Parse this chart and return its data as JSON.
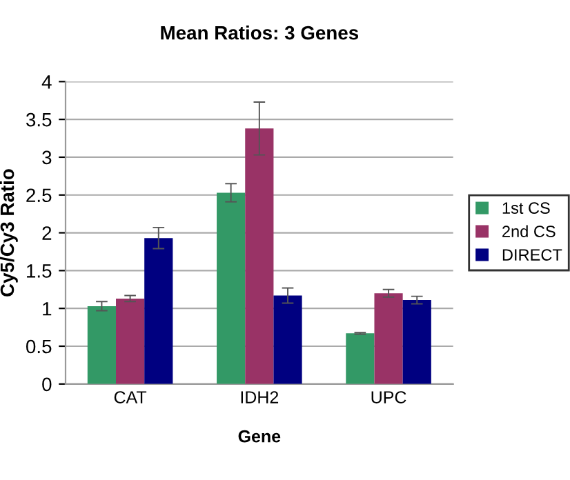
{
  "chart_data": {
    "type": "bar",
    "title": "Mean Ratios: 3 Genes",
    "xlabel": "Gene",
    "ylabel": "Cy5/Cy3 Ratio",
    "categories": [
      "CAT",
      "IDH2",
      "UPC"
    ],
    "series": [
      {
        "name": "1st CS",
        "color": "#339966",
        "values": [
          1.03,
          2.53,
          0.67
        ],
        "errors": [
          0.06,
          0.12,
          0.01
        ]
      },
      {
        "name": "2nd CS",
        "color": "#993366",
        "values": [
          1.13,
          3.38,
          1.2
        ],
        "errors": [
          0.04,
          0.35,
          0.05
        ]
      },
      {
        "name": "DIRECT",
        "color": "#000080",
        "values": [
          1.93,
          1.17,
          1.11
        ],
        "errors": [
          0.14,
          0.1,
          0.05
        ]
      }
    ],
    "ylim": [
      0,
      4
    ],
    "yticks": [
      0,
      0.5,
      1,
      1.5,
      2,
      2.5,
      3,
      3.5,
      4
    ],
    "grid": "y",
    "legend": "right"
  }
}
